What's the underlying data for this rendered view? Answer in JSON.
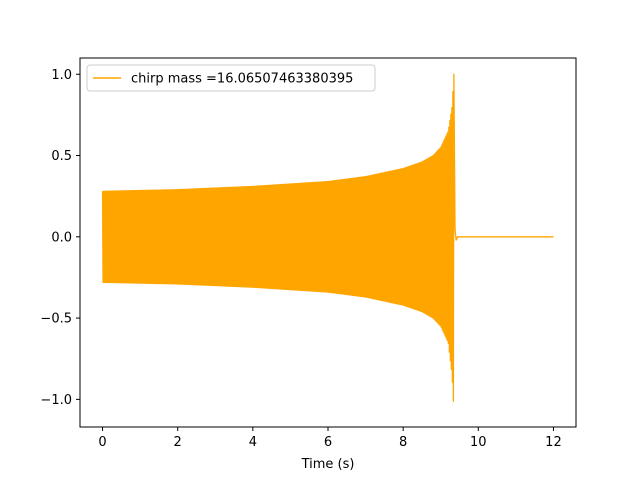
{
  "chart_data": {
    "type": "line",
    "title": "",
    "xlabel": "Time (s)",
    "ylabel": "",
    "xlim": [
      -0.6,
      12.6
    ],
    "ylim": [
      -1.17,
      1.1
    ],
    "x_ticks": [
      0,
      2,
      4,
      6,
      8,
      10,
      12
    ],
    "x_tick_labels": [
      "0",
      "2",
      "4",
      "6",
      "8",
      "10",
      "12"
    ],
    "y_ticks": [
      -1.0,
      -0.5,
      0.0,
      0.5,
      1.0
    ],
    "y_tick_labels": [
      "−1.0",
      "−0.5",
      "0.0",
      "0.5",
      "1.0"
    ],
    "grid": false,
    "legend_position": "upper-left",
    "series": [
      {
        "name": "chirp mass =16.06507463380395",
        "color": "#ffa500",
        "description": "chirp waveform: oscillation amplitude grows from ~0.28 to peak ~1.0 at merger (~9.35 s), then ringdown to ~0 until 12 s",
        "envelope_upper": {
          "x": [
            0.0,
            1.0,
            2.0,
            3.0,
            4.0,
            5.0,
            6.0,
            7.0,
            8.0,
            8.5,
            8.8,
            9.0,
            9.2,
            9.3,
            9.35
          ],
          "y": [
            0.28,
            0.285,
            0.29,
            0.3,
            0.31,
            0.325,
            0.34,
            0.37,
            0.42,
            0.46,
            0.5,
            0.55,
            0.65,
            0.8,
            1.0
          ]
        },
        "envelope_lower": {
          "x": [
            0.0,
            1.0,
            2.0,
            3.0,
            4.0,
            5.0,
            6.0,
            7.0,
            8.0,
            8.5,
            8.8,
            9.0,
            9.2,
            9.3,
            9.35
          ],
          "y": [
            -0.28,
            -0.285,
            -0.29,
            -0.3,
            -0.31,
            -0.325,
            -0.34,
            -0.37,
            -0.42,
            -0.46,
            -0.5,
            -0.55,
            -0.65,
            -0.85,
            -1.07
          ]
        },
        "merger_time": 9.35,
        "end_time": 12.0,
        "post_merger_value": 0.0
      }
    ]
  }
}
